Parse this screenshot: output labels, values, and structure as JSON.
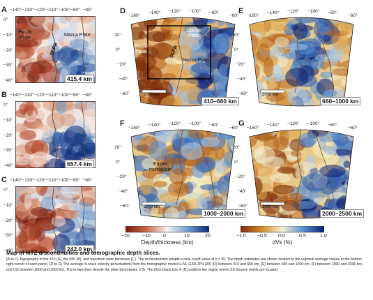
{
  "panels_left": [
    {
      "label": "A",
      "value": "415.4 km",
      "overlays": [
        "Pacific",
        "Plate",
        "SEPR",
        "Nazca Plate"
      ]
    },
    {
      "label": "B",
      "value": "657.4 km"
    },
    {
      "label": "C",
      "value": "242.0 km"
    }
  ],
  "left_xticks": [
    "−140°",
    "−130°",
    "−120°",
    "−110°",
    "−100°",
    "−90°",
    "−80°"
  ],
  "left_yticks": [
    "0°",
    "−10°",
    "−20°",
    "−30°",
    "−40°"
  ],
  "panels_right": [
    {
      "label": "D",
      "range": "410–660 km",
      "scale": "2000 km",
      "overlays": [
        "Pacific",
        "Plate",
        "SEPR",
        "Nazca Plate",
        "Cocos",
        "Plate"
      ]
    },
    {
      "label": "E",
      "range": "660–1000 km",
      "scale": "2000 km"
    },
    {
      "label": "F",
      "range": "1000–2000 km",
      "scale": "2000 km",
      "overlays": [
        "Easter",
        "microplate"
      ]
    },
    {
      "label": "G",
      "range": "2000–2500 km",
      "scale": "2000 km"
    }
  ],
  "map_xticks": [
    "−160°",
    "−140°",
    "−120°",
    "−100°",
    "−80°",
    "−60°"
  ],
  "map_yticks": [
    "20°",
    "0°",
    "−20°",
    "−40°",
    "−60°"
  ],
  "colorbar_left": {
    "title": "Depth/thickness (km)",
    "ticks": [
      "−20",
      "−10",
      "0",
      "10",
      "20"
    ]
  },
  "colorbar_right": {
    "title": "dVs (%)",
    "ticks": [
      "−1.0",
      "−0.5",
      "0.0",
      "0.5",
      "1.0"
    ]
  },
  "caption": {
    "title": "Map of MTZ discontinuities and tomographic depth slices.",
    "body": "(A to C) Topography of the 410 (A), the 660 (B), and transition zone thickness (C). The reconstruction adopts a rank cutoff value of k = 30. The depth estimates are shown relative to the regional average values at the bottom right corner of each panel. (D to G) The average S-wave velocity perturbations from the tomographic model LLNL-G3D-JPS (20) (D) between 410 and 660 km, (E) between 660 and 1000 km, (F) between 1000 and 2000 km, and (G) between 2000 and 2500 km. The brown lines denote the plate boundaries (73). The thick black box in (D) outlines the region where SS bounce points are located."
  },
  "colors": {
    "red": "#8b2a0f",
    "blue": "#0d2b7a",
    "cream": "#f5f2da",
    "orange": "#c86d14"
  }
}
